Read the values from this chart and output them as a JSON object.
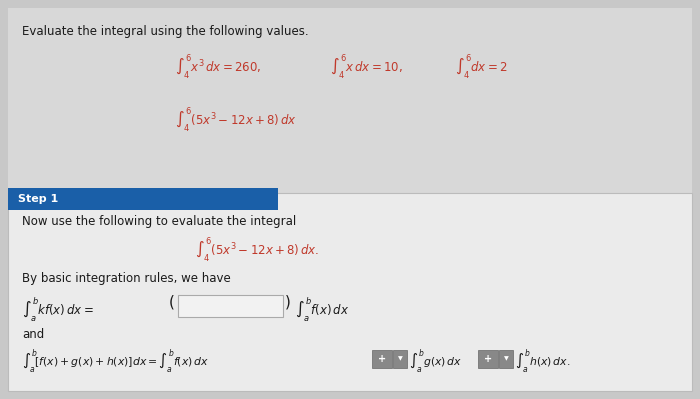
{
  "bg_color": "#c8c8c8",
  "upper_bg": "#d8d8d8",
  "lower_bg": "#ebebeb",
  "step_bar_color": "#1a5fa8",
  "step_text": "Step 1",
  "step_text_color": "#ffffff",
  "title_text": "Evaluate the integral using the following values.",
  "math_color": "#c0392b",
  "text_color": "#1a1a1a",
  "input_box_fill": "#f2f2f2",
  "input_box_edge": "#aaaaaa",
  "btn_color": "#888888",
  "btn_edge": "#666666",
  "lower_border": "#bbbbbb"
}
